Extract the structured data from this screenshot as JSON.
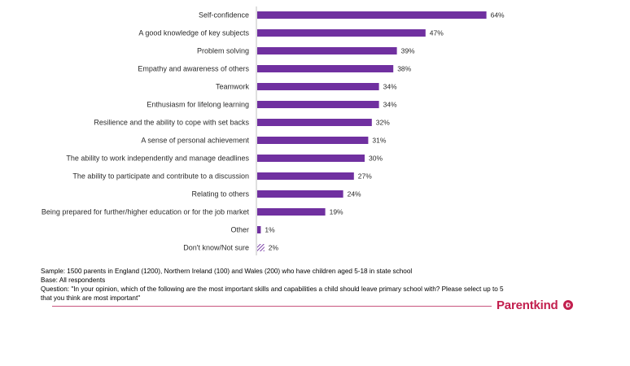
{
  "chart_data": {
    "type": "bar",
    "orientation": "horizontal",
    "categories": [
      "Self-confidence",
      "A good knowledge of key subjects",
      "Problem solving",
      "Empathy and awareness of others",
      "Teamwork",
      "Enthusiasm for lifelong learning",
      "Resilience and the ability to cope with set backs",
      "A sense of personal achievement",
      "The ability to work independently and manage deadlines",
      "The ability to participate and contribute to a discussion",
      "Relating to others",
      "Being prepared for further/higher education or for the job market",
      "Other",
      "Don't know/Not sure"
    ],
    "values": [
      64,
      47,
      39,
      38,
      34,
      34,
      32,
      31,
      30,
      27,
      24,
      19,
      1,
      2
    ],
    "value_labels": [
      "64%",
      "47%",
      "39%",
      "38%",
      "34%",
      "34%",
      "32%",
      "31%",
      "30%",
      "27%",
      "24%",
      "19%",
      "1%",
      "2%"
    ],
    "hatched": [
      false,
      false,
      false,
      false,
      false,
      false,
      false,
      false,
      false,
      false,
      false,
      false,
      false,
      true
    ],
    "xlim": [
      0,
      100
    ],
    "grid": false,
    "bar_color": "#7030a0"
  },
  "footnote": {
    "sample": "Sample: 1500 parents in England (1200), Northern Ireland (100) and Wales (200) who have children aged 5-18 in state school",
    "base": "Base: All respondents",
    "question_line1": "Question: \"In your opinion, which of the following are the most important skills and capabilities a child should leave primary school with? Please select up to 5",
    "question_line2": "that you think are most important\""
  },
  "brand": {
    "name": "Parentkind",
    "badge_icon": "pk-badge-icon",
    "color": "#c21f4e"
  }
}
